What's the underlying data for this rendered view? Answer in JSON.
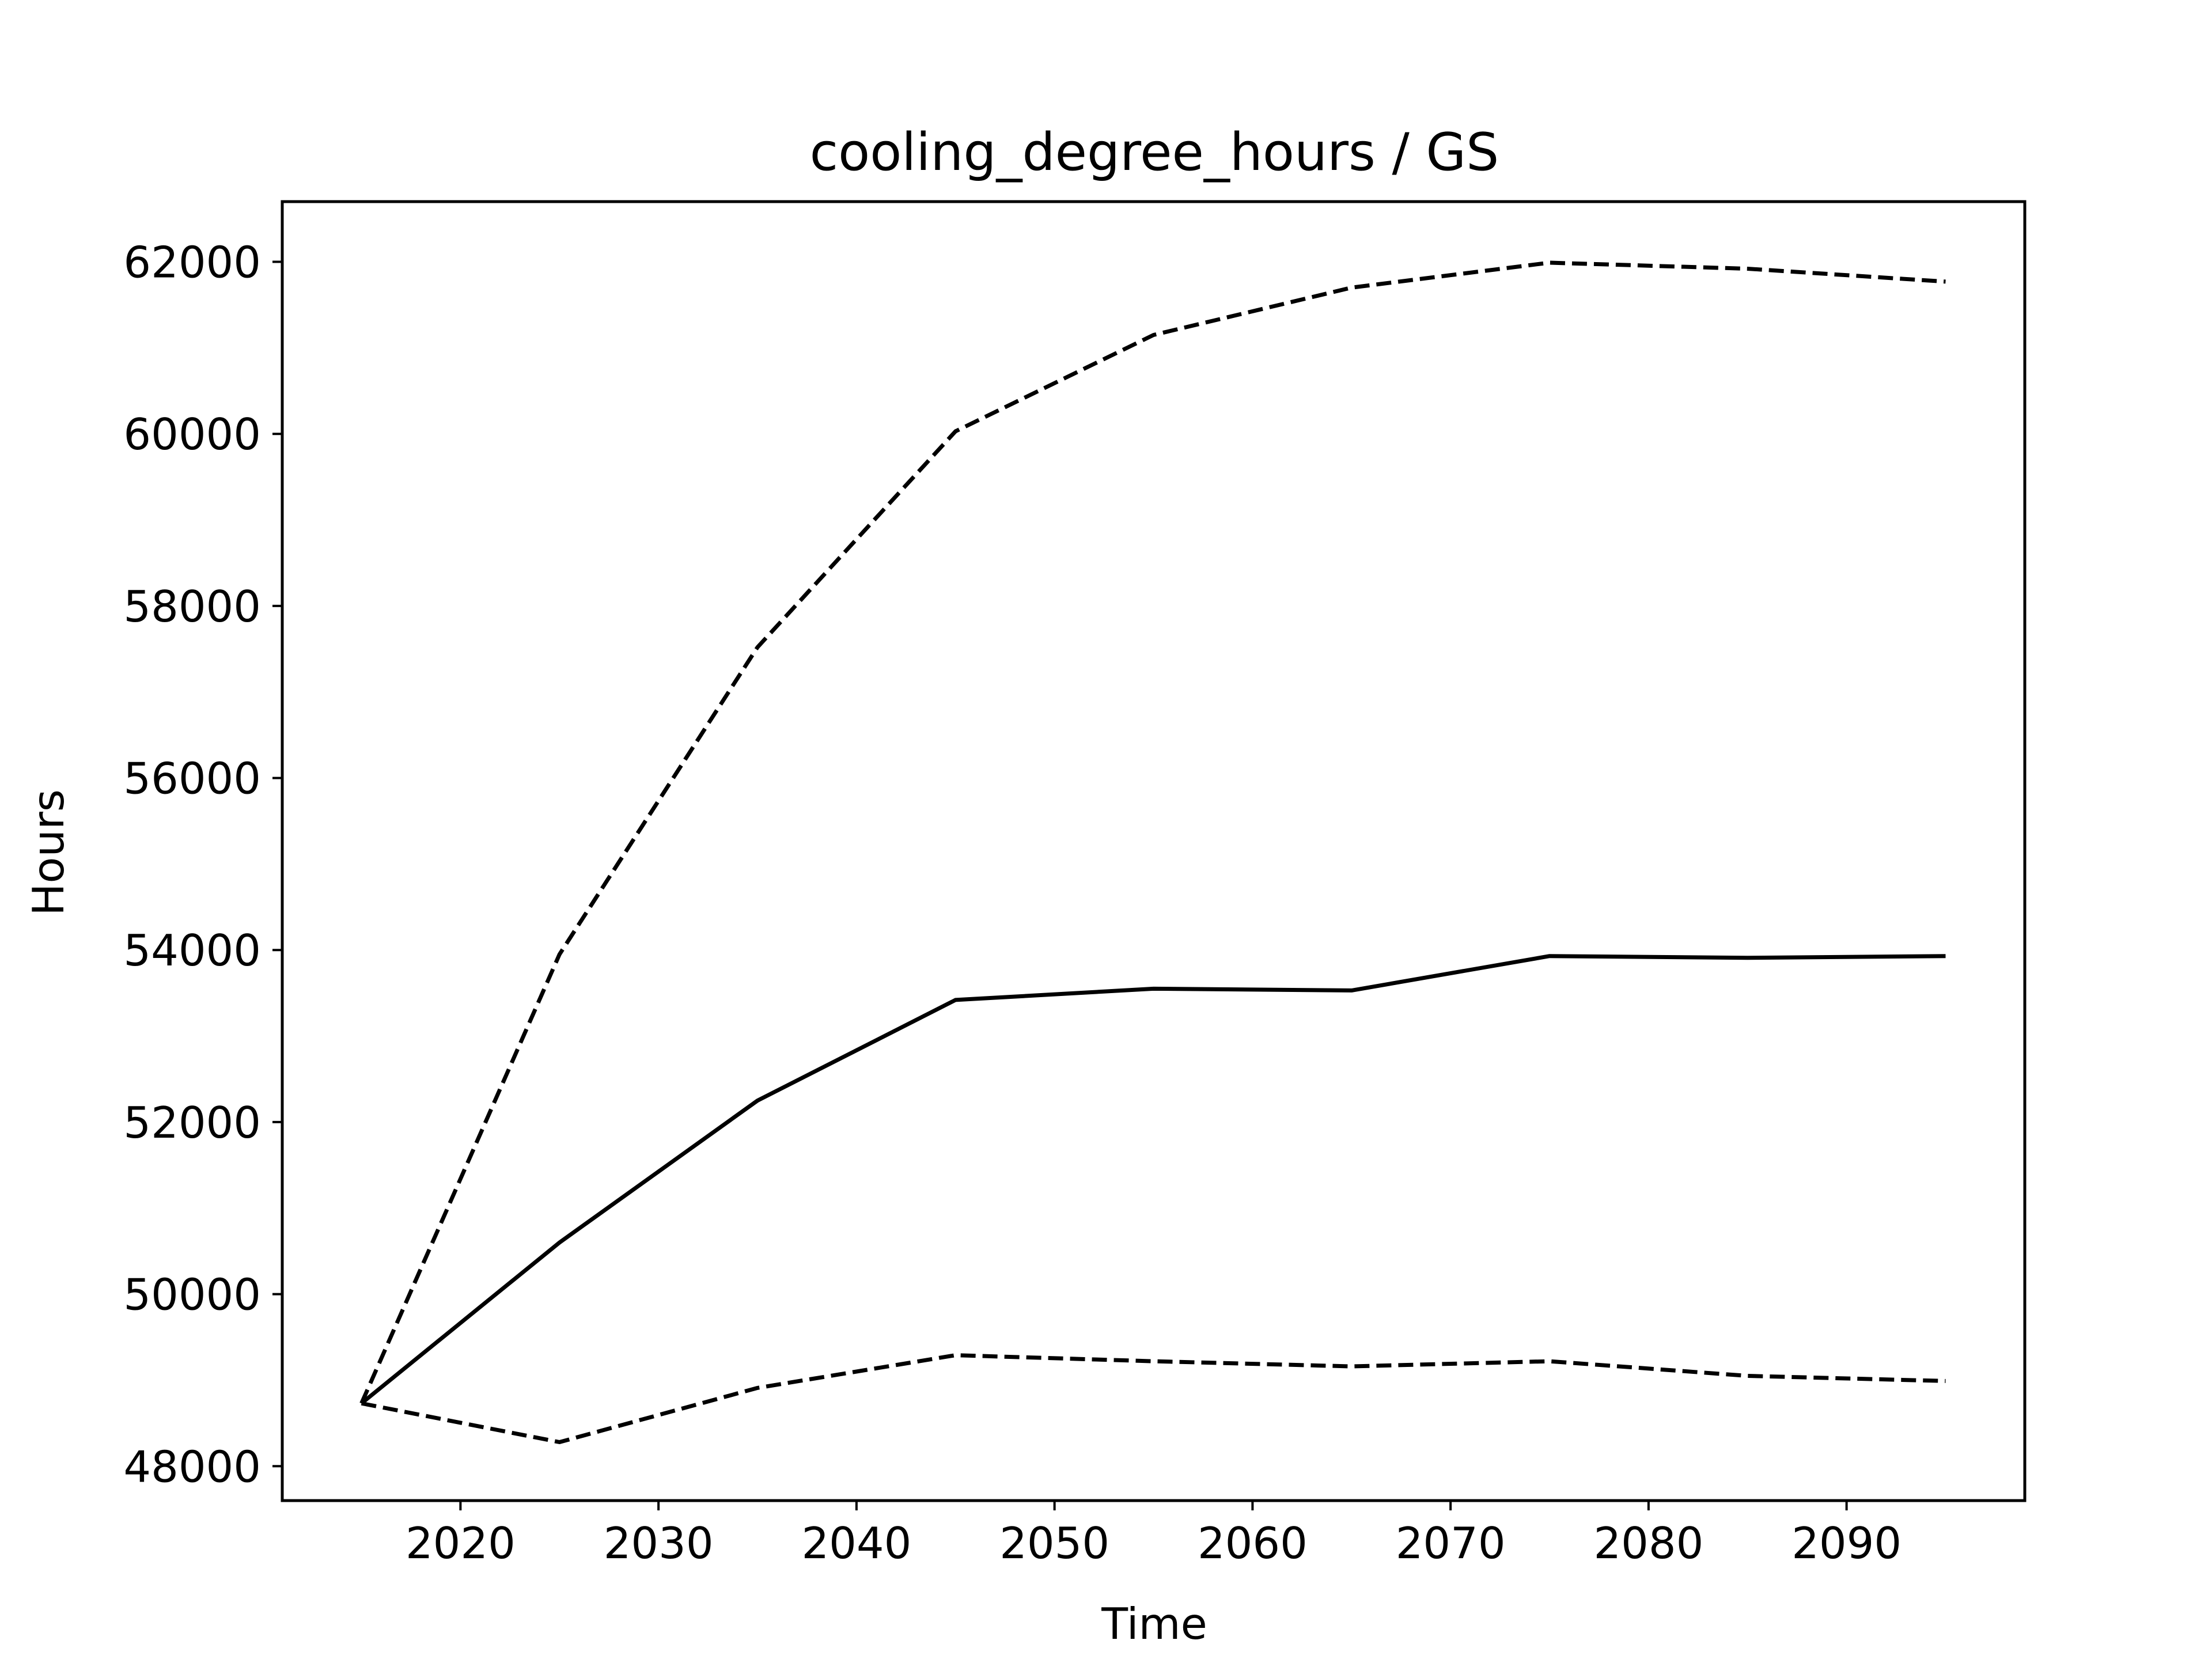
{
  "chart_data": {
    "type": "line",
    "title": "cooling_degree_hours / GS",
    "xlabel": "Time",
    "ylabel": "Hours",
    "xlim": [
      2011,
      2099
    ],
    "ylim": [
      47600,
      62700
    ],
    "xticks": [
      2020,
      2030,
      2040,
      2050,
      2060,
      2070,
      2080,
      2090
    ],
    "yticks": [
      48000,
      50000,
      52000,
      54000,
      56000,
      58000,
      60000,
      62000
    ],
    "grid": false,
    "x": [
      2015,
      2025,
      2035,
      2045,
      2055,
      2065,
      2075,
      2085,
      2095
    ],
    "series": [
      {
        "style": "dashed",
        "color": "#000000",
        "values": [
          48730,
          53950,
          57520,
          60030,
          61150,
          61700,
          61990,
          61920,
          61770
        ]
      },
      {
        "style": "solid",
        "color": "#000000",
        "values": [
          48730,
          50600,
          52250,
          53420,
          53550,
          53530,
          53930,
          53910,
          53930
        ]
      },
      {
        "style": "dashed",
        "color": "#000000",
        "values": [
          48730,
          48280,
          48910,
          49290,
          49220,
          49160,
          49220,
          49050,
          48990
        ]
      }
    ]
  }
}
